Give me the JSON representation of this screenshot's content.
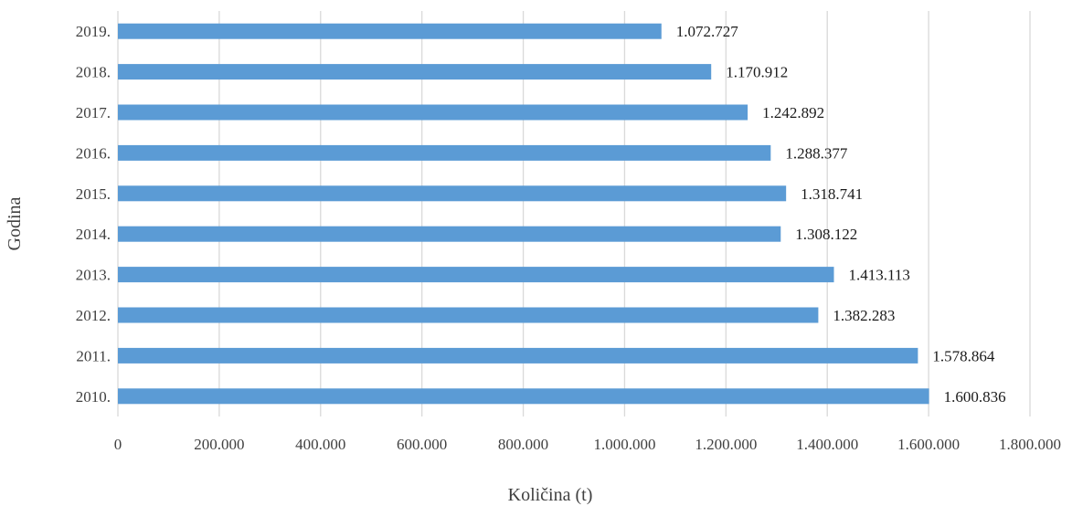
{
  "chart_data": {
    "type": "bar",
    "orientation": "horizontal",
    "title": "",
    "xlabel": "Količina (t)",
    "ylabel": "Godina",
    "categories": [
      "2019.",
      "2018.",
      "2017.",
      "2016.",
      "2015.",
      "2014.",
      "2013.",
      "2012.",
      "2011.",
      "2010."
    ],
    "values": [
      1072727,
      1170912,
      1242892,
      1288377,
      1318741,
      1308122,
      1413113,
      1382283,
      1578864,
      1600836
    ],
    "data_labels": [
      "1.072.727",
      "1.170.912",
      "1.242.892",
      "1.288.377",
      "1.318.741",
      "1.308.122",
      "1.413.113",
      "1.382.283",
      "1.578.864",
      "1.600.836"
    ],
    "xlim": [
      0,
      1800000
    ],
    "x_ticks": [
      0,
      200000,
      400000,
      600000,
      800000,
      1000000,
      1200000,
      1400000,
      1600000,
      1800000
    ],
    "x_tick_labels": [
      "0",
      "200.000",
      "400.000",
      "600.000",
      "800.000",
      "1.000.000",
      "1.200.000",
      "1.400.000",
      "1.600.000",
      "1.800.000"
    ],
    "grid": "vertical",
    "legend": "none",
    "bar_color": "#5b9bd5",
    "grid_color": "#d9d9d9"
  }
}
